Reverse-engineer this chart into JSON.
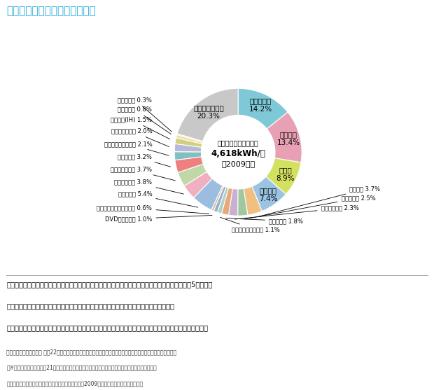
{
  "title": "家電製品別の消費電力量の比較",
  "center_line1": "世帯当たり電気使用量",
  "center_line2": "4,618kWh/年",
  "center_line3": "（2009年）",
  "slices": [
    {
      "label": "電気冷蔵庫",
      "pct": 14.2,
      "color": "#7EC8D8"
    },
    {
      "label": "照明器具",
      "pct": 13.4,
      "color": "#E8A0B4"
    },
    {
      "label": "テレビ",
      "pct": 8.9,
      "color": "#D4E060"
    },
    {
      "label": "エアコン",
      "pct": 7.4,
      "color": "#9BC4E2"
    },
    {
      "label": "電気便座",
      "pct": 3.7,
      "color": "#F0C080"
    },
    {
      "label": "電子計算機",
      "pct": 2.5,
      "color": "#A0C8A0"
    },
    {
      "label": "ジャー炊飯器",
      "pct": 2.3,
      "color": "#C8B0D0"
    },
    {
      "label": "電子レンジ",
      "pct": 1.8,
      "color": "#E8A878"
    },
    {
      "label": "ネットワーク機器類",
      "pct": 1.1,
      "color": "#B0D0C8"
    },
    {
      "label": "DVDレコーダー",
      "pct": 1.0,
      "color": "#9BAED0"
    },
    {
      "label": "ビデオテープレコーダー",
      "pct": 0.6,
      "color": "#D0C090"
    },
    {
      "label": "電気温水器",
      "pct": 5.4,
      "color": "#9ABDE0"
    },
    {
      "label": "エコキュート",
      "pct": 3.8,
      "color": "#F0B0C0"
    },
    {
      "label": "食器洗い乾燥機",
      "pct": 3.7,
      "color": "#C0D8A8"
    },
    {
      "label": "電気ポット",
      "pct": 3.2,
      "color": "#F08080"
    },
    {
      "label": "洗濯機・洗濯乾燥機",
      "pct": 2.1,
      "color": "#80C0C0"
    },
    {
      "label": "電気カーペット",
      "pct": 2.0,
      "color": "#B8B8D8"
    },
    {
      "label": "電気厨房(IH)",
      "pct": 1.5,
      "color": "#D0D080"
    },
    {
      "label": "電気こたつ",
      "pct": 0.8,
      "color": "#F0E0A0"
    },
    {
      "label": "衣類乾燥機",
      "pct": 0.3,
      "color": "#C8E0B0"
    },
    {
      "label": "電気機器その他",
      "pct": 20.3,
      "color": "#C8C8C8"
    }
  ],
  "body_text_lines": [
    "家庭の中で特に電気消費量が多いのは、電気冷蔵庫、照明器具、テレビ、エアコン、電気温水器の5つです。",
    "これらをはじめとする家電製品を上手に使うことで、効果的に節電することができます。",
    "また、日中のピーク時を避けて電化製品を利用することも、電力供給の安定を保つために重要な方法です。"
  ],
  "footnote_lines": [
    "出典：資源エネルギー庁 平成22年度省エネルギー政策分析調査事業「家庭におけるエネルギー消費実態について」",
    "　※資源エネルギー庁平成21年度民生部門エネルギー消費実態調査及び機器の使用に関する調査より",
    "　日本エネルギー経済研究所が試算（注：エアコンは2009年の冷夏・暖冬影響を含む）。"
  ],
  "title_color": "#29ABE2",
  "bg_color": "#FFFFFF"
}
